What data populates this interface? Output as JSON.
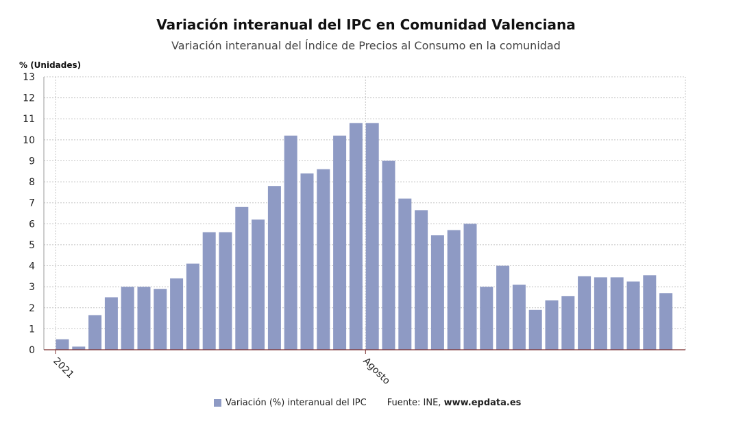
{
  "chart_data": {
    "type": "bar",
    "title": "Variación interanual del IPC en Comunidad Valenciana",
    "subtitle": "Variación interanual del Índice de Precios al Consumo en la comunidad",
    "ylabel": "% (Unidades)",
    "xlabel": "",
    "ylim": [
      0,
      13
    ],
    "yticks": [
      "0",
      "1",
      "2",
      "3",
      "4",
      "5",
      "6",
      "7",
      "8",
      "9",
      "10",
      "11",
      "12",
      "13"
    ],
    "xtick_labels": [
      {
        "label": "2021",
        "index": 0
      },
      {
        "label": "Agosto",
        "index": 19
      }
    ],
    "grid": true,
    "legend_position": "bottom",
    "series": [
      {
        "name": "Variación (%) interanual del IPC",
        "color": "#8e9ac4",
        "values": [
          0.5,
          0.15,
          1.65,
          2.5,
          3.0,
          3.0,
          2.9,
          3.4,
          4.1,
          5.6,
          5.6,
          6.8,
          6.2,
          7.8,
          10.2,
          8.4,
          8.6,
          10.2,
          10.8,
          10.8,
          9.0,
          7.2,
          6.65,
          5.45,
          5.7,
          6.0,
          3.0,
          4.0,
          3.1,
          1.9,
          2.35,
          2.55,
          3.5,
          3.45,
          3.45,
          3.25,
          3.55,
          2.7
        ]
      }
    ]
  },
  "legend": {
    "label": "Variación (%) interanual del IPC",
    "source_prefix": "Fuente: INE, ",
    "source_site": "www.epdata.es"
  }
}
